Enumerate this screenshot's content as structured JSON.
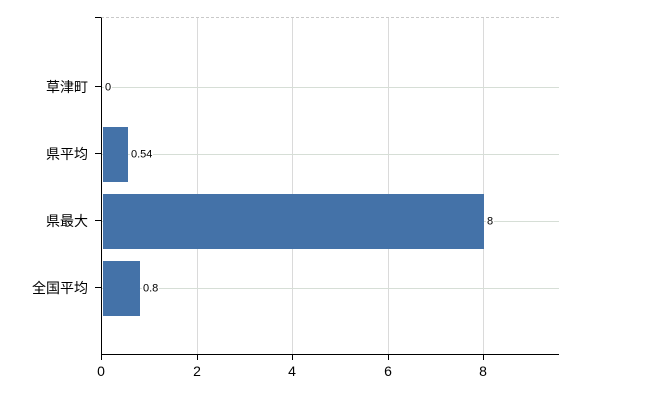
{
  "chart_data": {
    "type": "bar",
    "orientation": "horizontal",
    "title": "",
    "xlabel": "",
    "ylabel": "",
    "categories": [
      "草津町",
      "県平均",
      "県最大",
      "全国平均"
    ],
    "values": [
      0,
      0.54,
      8,
      0.8
    ],
    "value_labels": [
      "0",
      "0.54",
      "8",
      "0.8"
    ],
    "x_ticks": [
      "0",
      "2",
      "4",
      "6",
      "8"
    ],
    "x_tick_values": [
      0,
      2,
      4,
      6,
      8
    ],
    "xlim": [
      0,
      9.59
    ],
    "grid": "on",
    "legend": "none",
    "colors": {
      "bar": "#4472a8",
      "grid_horizontal": "#d6ded6",
      "grid_vertical": "#dadada",
      "plot_top_border": "#c9c9c9",
      "axis": "#000000",
      "text": "#000000",
      "background": "#ffffff"
    }
  }
}
